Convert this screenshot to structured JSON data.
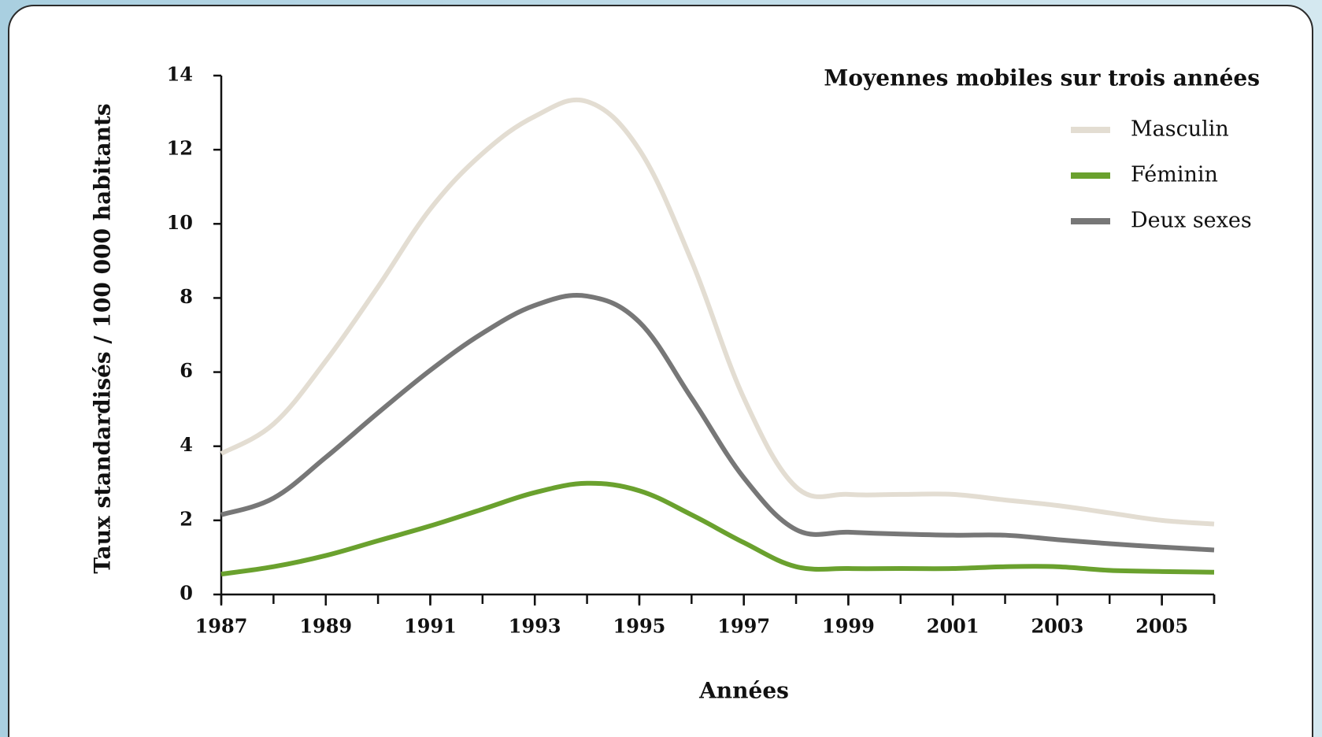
{
  "chart_data": {
    "type": "line",
    "legend_title": "Moyennes mobiles sur trois années",
    "x_label": "Années",
    "y_label": "Taux standardisés / 100 000 habitants",
    "x": [
      1987,
      1988,
      1989,
      1990,
      1991,
      1992,
      1993,
      1994,
      1995,
      1996,
      1997,
      1998,
      1999,
      2000,
      2001,
      2002,
      2003,
      2004,
      2005,
      2006
    ],
    "series": [
      {
        "name": "Masculin",
        "color": "#e3ddd2",
        "values": [
          3.8,
          4.6,
          6.3,
          8.3,
          10.4,
          11.9,
          12.9,
          13.3,
          12.0,
          9.0,
          5.3,
          2.9,
          2.7,
          2.7,
          2.7,
          2.55,
          2.4,
          2.2,
          2.0,
          1.9
        ]
      },
      {
        "name": "Féminin",
        "color": "#6aa12e",
        "values": [
          0.55,
          0.75,
          1.05,
          1.45,
          1.85,
          2.3,
          2.75,
          3.0,
          2.8,
          2.15,
          1.4,
          0.75,
          0.7,
          0.7,
          0.7,
          0.75,
          0.75,
          0.65,
          0.62,
          0.6
        ]
      },
      {
        "name": "Deux sexes",
        "color": "#777777",
        "values": [
          2.15,
          2.6,
          3.7,
          4.9,
          6.05,
          7.05,
          7.8,
          8.05,
          7.35,
          5.3,
          3.15,
          1.75,
          1.68,
          1.63,
          1.6,
          1.6,
          1.48,
          1.37,
          1.28,
          1.2
        ]
      }
    ],
    "xlim": [
      1987,
      2006
    ],
    "xticks": [
      1987,
      1989,
      1991,
      1993,
      1995,
      1997,
      1999,
      2001,
      2003,
      2005
    ],
    "ylim": [
      0,
      14
    ],
    "yticks": [
      0,
      2,
      4,
      6,
      8,
      10,
      12,
      14
    ],
    "grid": false,
    "legend": "upper right"
  }
}
